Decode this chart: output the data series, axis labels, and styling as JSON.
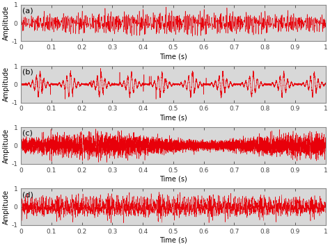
{
  "n_samples": 10000,
  "sample_rate": 10000,
  "duration": 1.0,
  "xlim": [
    0,
    1
  ],
  "ylim": [
    -1,
    1
  ],
  "yticks": [
    -1,
    0,
    1
  ],
  "xticks": [
    0,
    0.1,
    0.2,
    0.3,
    0.4,
    0.5,
    0.6,
    0.7,
    0.8,
    0.9,
    1.0
  ],
  "xlabel": "Time (s)",
  "ylabel": "Amplitude",
  "line_color": "#e8000a",
  "background_color": "#d8d8d8",
  "labels": [
    "(a)",
    "(b)",
    "(c)",
    "(d)"
  ],
  "figsize": [
    4.74,
    3.54
  ],
  "dpi": 100
}
